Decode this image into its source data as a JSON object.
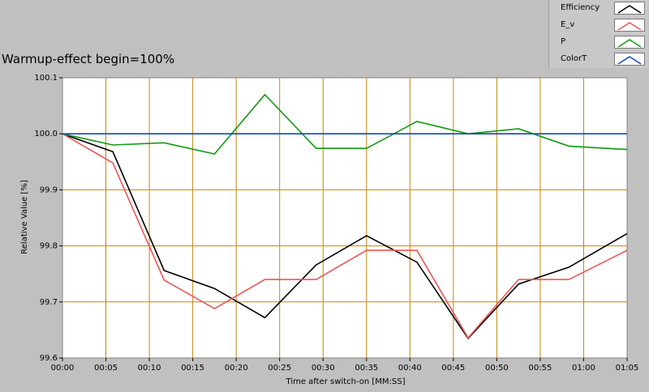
{
  "window": {
    "title": "Warmup-effect begin=100%"
  },
  "colors": {
    "plot_background": "#ffffff",
    "grid": "#c8860a",
    "efficiency": "#000000",
    "e_v": "#ee5555",
    "p": "#119911",
    "colort": "#1144cc"
  },
  "chart_data": {
    "type": "line",
    "title": "Warmup-effect begin=100%",
    "xlabel": "Time after switch-on [MM:SS]",
    "ylabel": "Relative Value [%]",
    "xlim": [
      0,
      65
    ],
    "ylim": [
      99.6,
      100.1
    ],
    "grid": true,
    "legend_position": "top-right",
    "x_ticks": [
      0,
      5,
      10,
      15,
      20,
      25,
      30,
      35,
      40,
      45,
      50,
      55,
      60,
      65
    ],
    "x_tick_labels": [
      "00:00",
      "00:05",
      "00:10",
      "00:15",
      "00:20",
      "00:25",
      "00:30",
      "00:35",
      "00:40",
      "00:45",
      "00:50",
      "00:55",
      "01:00",
      "01:05"
    ],
    "y_ticks": [
      99.6,
      99.7,
      99.8,
      99.9,
      100.0,
      100.1
    ],
    "y_tick_labels": [
      "99.6",
      "99.7",
      "99.8",
      "99.9",
      "100.0",
      "100.1"
    ],
    "series": [
      {
        "name": "Efficiency",
        "color": "#000000",
        "x": [
          0,
          5.8,
          11.7,
          17.5,
          23.3,
          29.2,
          35,
          40.8,
          46.7,
          52.5,
          58.3,
          65
        ],
        "y": [
          100.0,
          99.968,
          99.756,
          99.724,
          99.672,
          99.766,
          99.818,
          99.771,
          99.635,
          99.732,
          99.762,
          99.822
        ]
      },
      {
        "name": "E_v",
        "color": "#ee5555",
        "x": [
          0,
          5.8,
          11.7,
          17.5,
          23.3,
          29.2,
          35,
          40.8,
          46.7,
          52.5,
          58.3,
          65
        ],
        "y": [
          100.0,
          99.948,
          99.739,
          99.688,
          99.74,
          99.74,
          99.792,
          99.792,
          99.636,
          99.74,
          99.74,
          99.792
        ]
      },
      {
        "name": "P",
        "color": "#119911",
        "x": [
          0,
          5.8,
          11.7,
          17.5,
          23.3,
          29.2,
          35,
          40.8,
          46.7,
          52.5,
          58.3,
          65
        ],
        "y": [
          100.0,
          99.98,
          99.984,
          99.964,
          100.07,
          99.974,
          99.974,
          100.022,
          100.0,
          100.009,
          99.978,
          99.972
        ]
      },
      {
        "name": "ColorT",
        "color": "#1144cc",
        "x": [
          0,
          65
        ],
        "y": [
          100.0,
          100.0
        ]
      }
    ]
  }
}
